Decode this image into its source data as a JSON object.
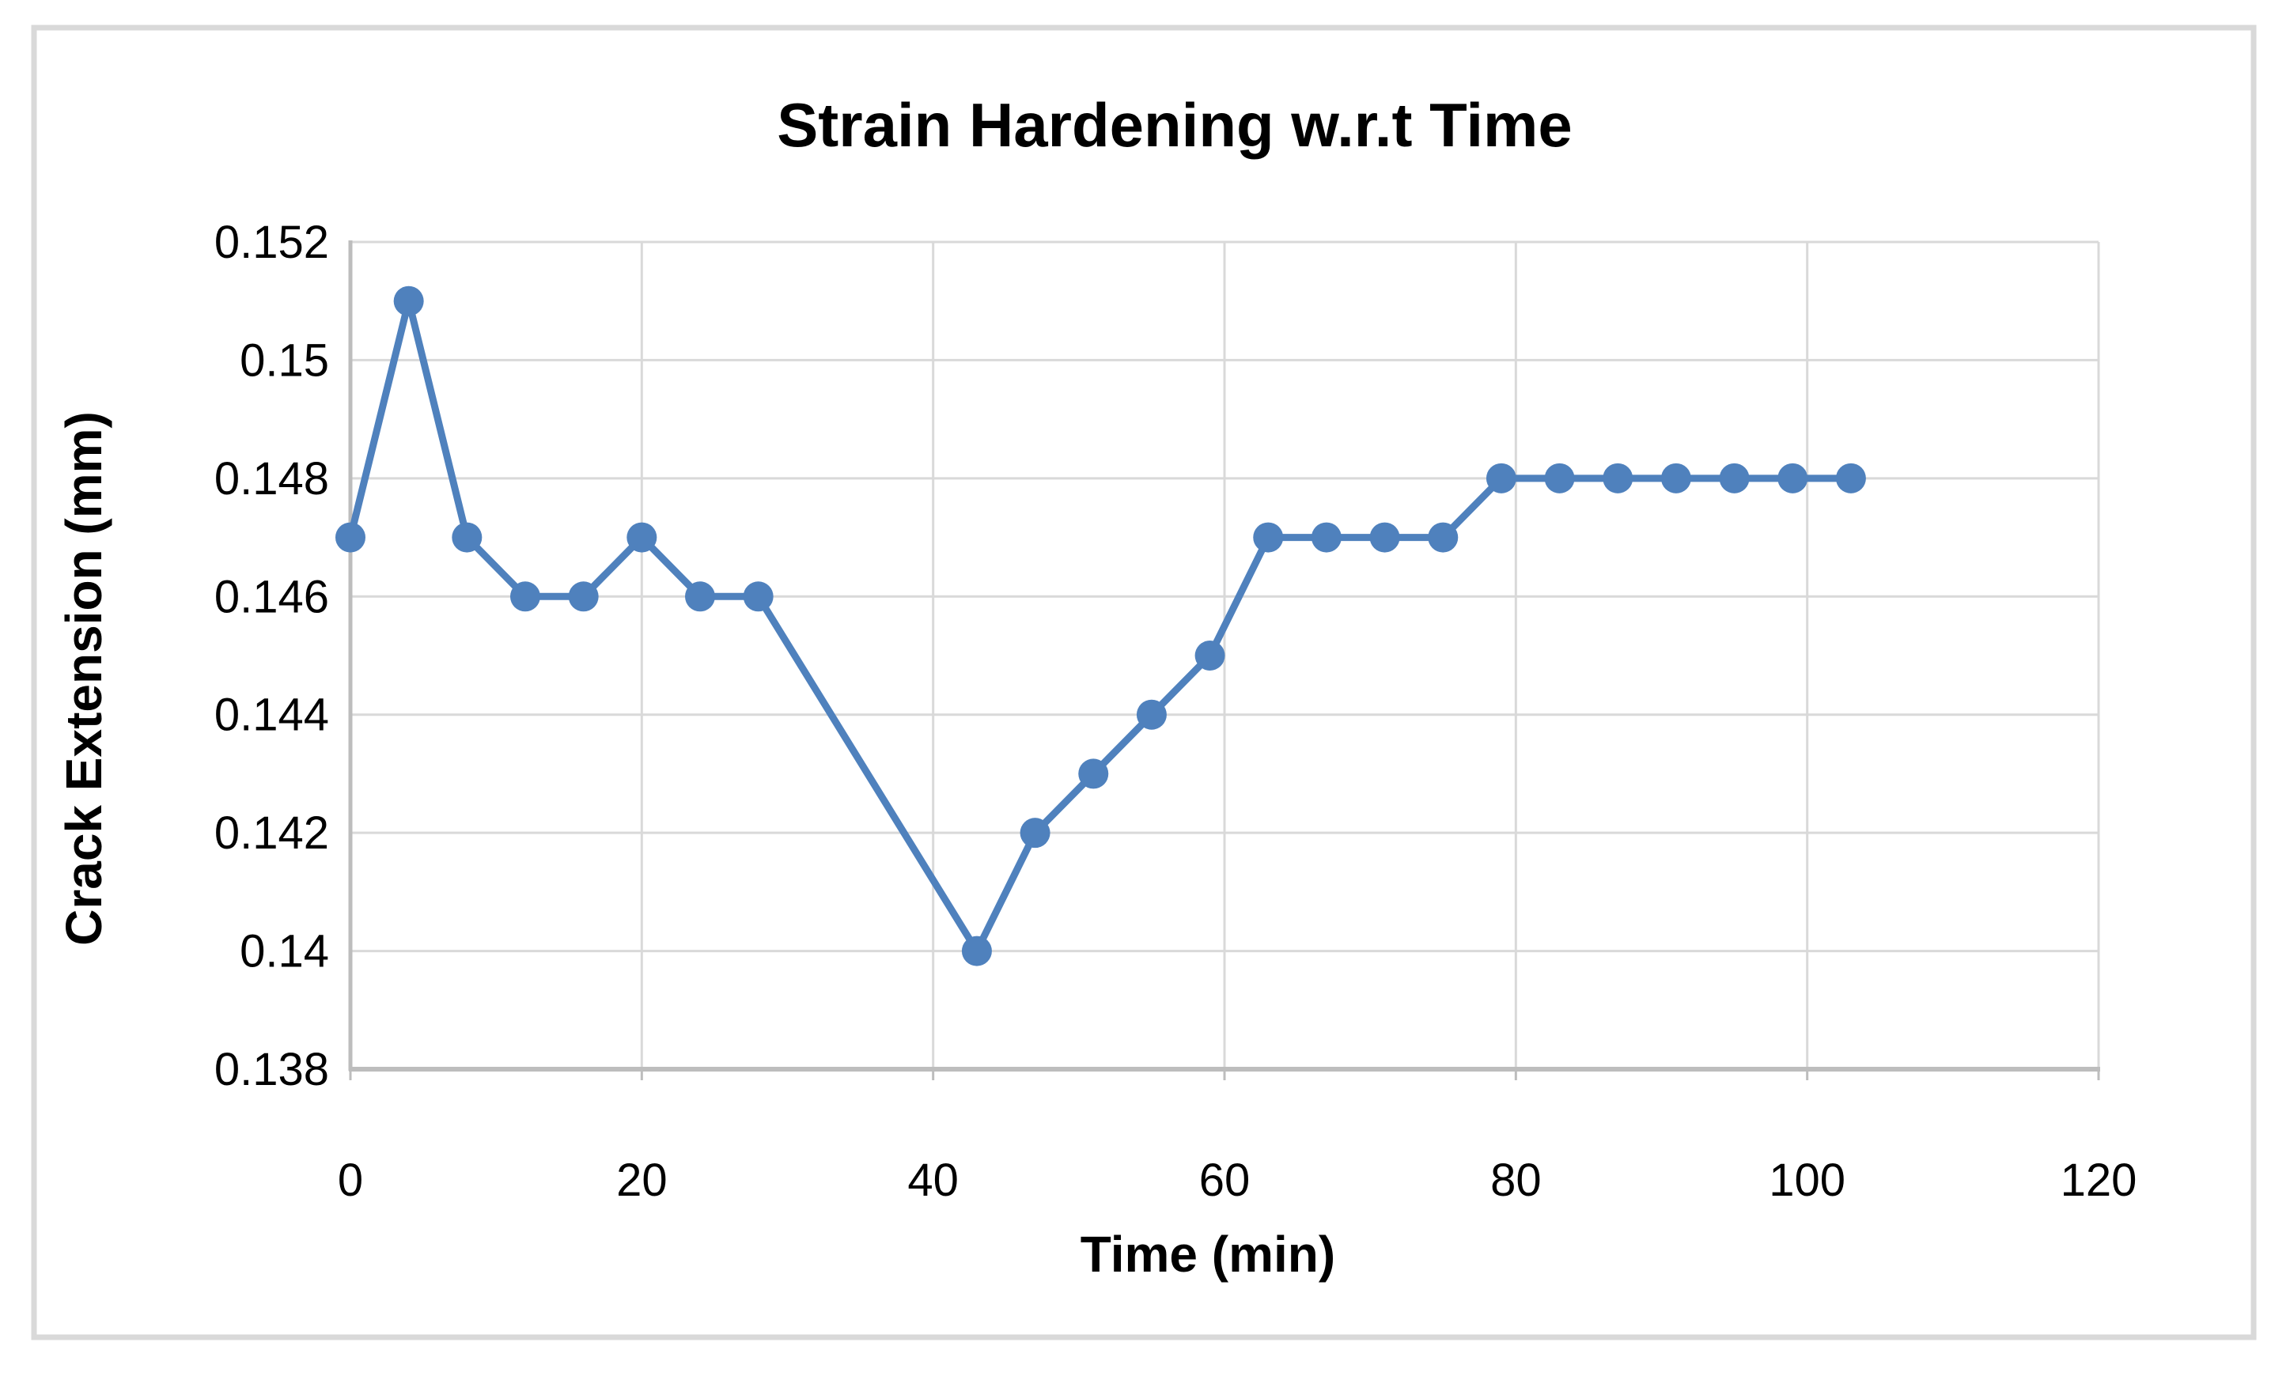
{
  "figure": {
    "background": "#ffffff",
    "frame_border_color": "#d9d9d9"
  },
  "chart_data": {
    "type": "line",
    "title": "Strain Hardening w.r.t Time",
    "xlabel": "Time (min)",
    "ylabel": "Crack Extension (mm)",
    "series": [
      {
        "name": "Crack Extension",
        "x": [
          0,
          4,
          8,
          12,
          16,
          20,
          24,
          28,
          43,
          47,
          51,
          55,
          59,
          63,
          67,
          71,
          75,
          79,
          83,
          87,
          91,
          95,
          99,
          103
        ],
        "y": [
          0.147,
          0.151,
          0.147,
          0.146,
          0.146,
          0.147,
          0.146,
          0.146,
          0.14,
          0.142,
          0.143,
          0.144,
          0.145,
          0.147,
          0.147,
          0.147,
          0.147,
          0.148,
          0.148,
          0.148,
          0.148,
          0.148,
          0.148,
          0.148
        ]
      }
    ],
    "xlim": [
      0,
      120
    ],
    "ylim": [
      0.138,
      0.152
    ],
    "x_ticks": [
      0,
      20,
      40,
      60,
      80,
      100,
      120
    ],
    "x_tick_labels": [
      "0",
      "20",
      "40",
      "60",
      "80",
      "100",
      "120"
    ],
    "y_ticks": [
      0.152,
      0.15,
      0.148,
      0.146,
      0.144,
      0.142,
      0.14,
      0.138
    ],
    "y_tick_labels": [
      "0.152",
      "0.15",
      "0.148",
      "0.146",
      "0.144",
      "0.142",
      "0.14",
      "0.138"
    ],
    "grid": true,
    "legend_position": "none",
    "line_color": "#4f81bd",
    "marker_color": "#4f81bd",
    "marker_shape": "circle",
    "gridline_color": "#d9d9d9",
    "axis_line_color": "#bdbdbd",
    "text_color": "#000000"
  }
}
